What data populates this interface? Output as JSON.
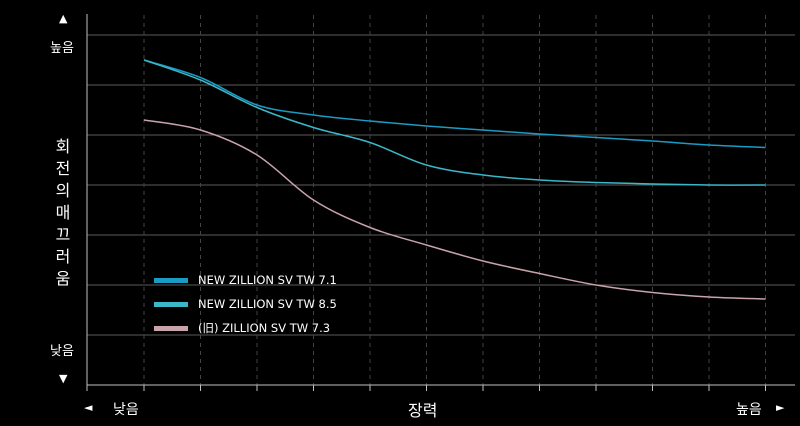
{
  "chart_data": {
    "type": "line",
    "ylabel": "회전의 매끄러움",
    "xlabel": "장력",
    "y_low_label": "낮음",
    "y_high_label": "높음",
    "x_low_label": "낮음",
    "x_high_label": "높음",
    "y_arrow_up": "▲",
    "y_arrow_down": "▼",
    "x_arrow_left": "◄",
    "x_arrow_right": "►",
    "xlim": [
      0,
      11
    ],
    "ylim": [
      0,
      7
    ],
    "grid": true,
    "legend_position": "bottom-left",
    "series": [
      {
        "name": "NEW ZILLION SV TW 7.1",
        "color": "#1a9bc4",
        "x": [
          1,
          2,
          3,
          4,
          5,
          6,
          7,
          8,
          9,
          10,
          11,
          12
        ],
        "y": [
          6.5,
          6.15,
          5.6,
          5.4,
          5.28,
          5.18,
          5.1,
          5.02,
          4.95,
          4.88,
          4.8,
          4.75
        ]
      },
      {
        "name": "NEW ZILLION SV TW 8.5",
        "color": "#3ab8c8",
        "x": [
          1,
          2,
          3,
          4,
          5,
          6,
          7,
          8,
          9,
          10,
          11,
          12
        ],
        "y": [
          6.5,
          6.1,
          5.55,
          5.15,
          4.85,
          4.4,
          4.2,
          4.1,
          4.05,
          4.02,
          4.0,
          4.0
        ]
      },
      {
        "name": "(旧) ZILLION SV TW 7.3",
        "color": "#c9a3aa",
        "x": [
          1,
          2,
          3,
          4,
          5,
          6,
          7,
          8,
          9,
          10,
          11,
          12
        ],
        "y": [
          5.3,
          5.1,
          4.6,
          3.7,
          3.15,
          2.8,
          2.48,
          2.23,
          2.0,
          1.85,
          1.76,
          1.72
        ]
      }
    ]
  }
}
